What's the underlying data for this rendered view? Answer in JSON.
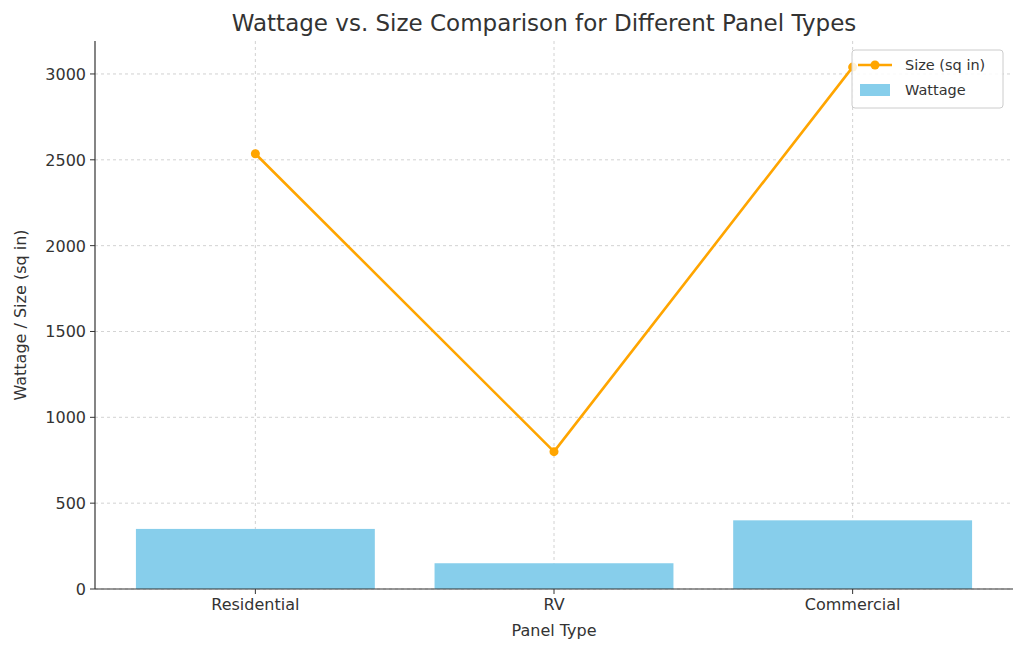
{
  "chart_data": {
    "type": "bar",
    "title": "Wattage vs. Size Comparison for Different Panel Types",
    "x_label": "Panel Type",
    "y_label": "Wattage / Size (sq in)",
    "categories": [
      "Residential",
      "RV",
      "Commercial"
    ],
    "series": [
      {
        "name": "Size (sq in)",
        "type": "line",
        "color": "#ffa500",
        "marker": "circle",
        "values": [
          2535,
          800,
          3040
        ]
      },
      {
        "name": "Wattage",
        "type": "bar",
        "color": "#87ceeb",
        "values": [
          350,
          150,
          400
        ]
      }
    ],
    "ylim": [
      0,
      3192
    ],
    "yticks": [
      0,
      500,
      1000,
      1500,
      2000,
      2500,
      3000
    ],
    "grid": true,
    "legend": "upper right"
  }
}
